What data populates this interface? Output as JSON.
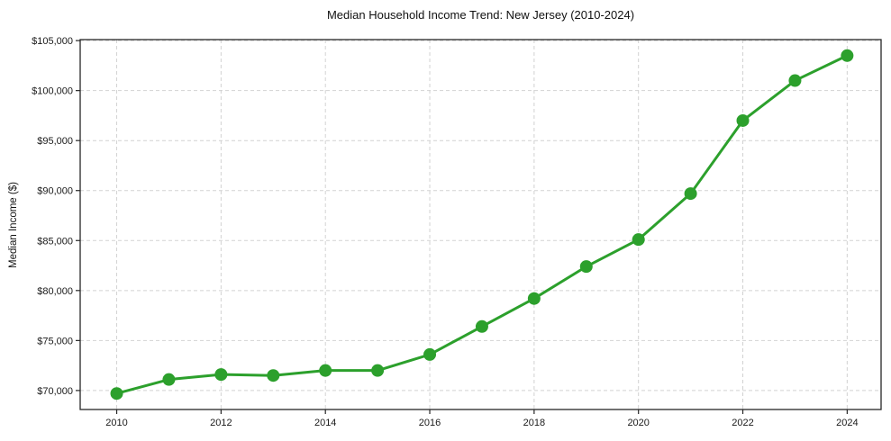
{
  "chart_data": {
    "type": "line",
    "title": "Median Household Income Trend: New Jersey (2010-2024)",
    "xlabel": "",
    "ylabel": "Median Income ($)",
    "x": [
      2010,
      2011,
      2012,
      2013,
      2014,
      2015,
      2016,
      2017,
      2018,
      2019,
      2020,
      2021,
      2022,
      2023,
      2024
    ],
    "values": [
      69700,
      71100,
      71600,
      71500,
      72000,
      72000,
      73600,
      76400,
      79200,
      82400,
      85100,
      89700,
      97000,
      101000,
      103500
    ],
    "x_ticks": [
      2010,
      2012,
      2014,
      2016,
      2018,
      2020,
      2022,
      2024
    ],
    "x_tick_labels": [
      "2010",
      "2012",
      "2014",
      "2016",
      "2018",
      "2020",
      "2022",
      "2024"
    ],
    "y_ticks": [
      70000,
      75000,
      80000,
      85000,
      90000,
      95000,
      100000,
      105000
    ],
    "y_tick_labels": [
      "$70,000",
      "$75,000",
      "$80,000",
      "$85,000",
      "$90,000",
      "$95,000",
      "$100,000",
      "$105,000"
    ],
    "xlim": [
      2009.3,
      2024.65
    ],
    "ylim": [
      68100,
      105100
    ],
    "grid": true,
    "grid_style": "dashed",
    "legend": "none",
    "line_color": "#2ca02c",
    "marker": "circle",
    "marker_radius_px": 7,
    "background": "#ffffff"
  }
}
